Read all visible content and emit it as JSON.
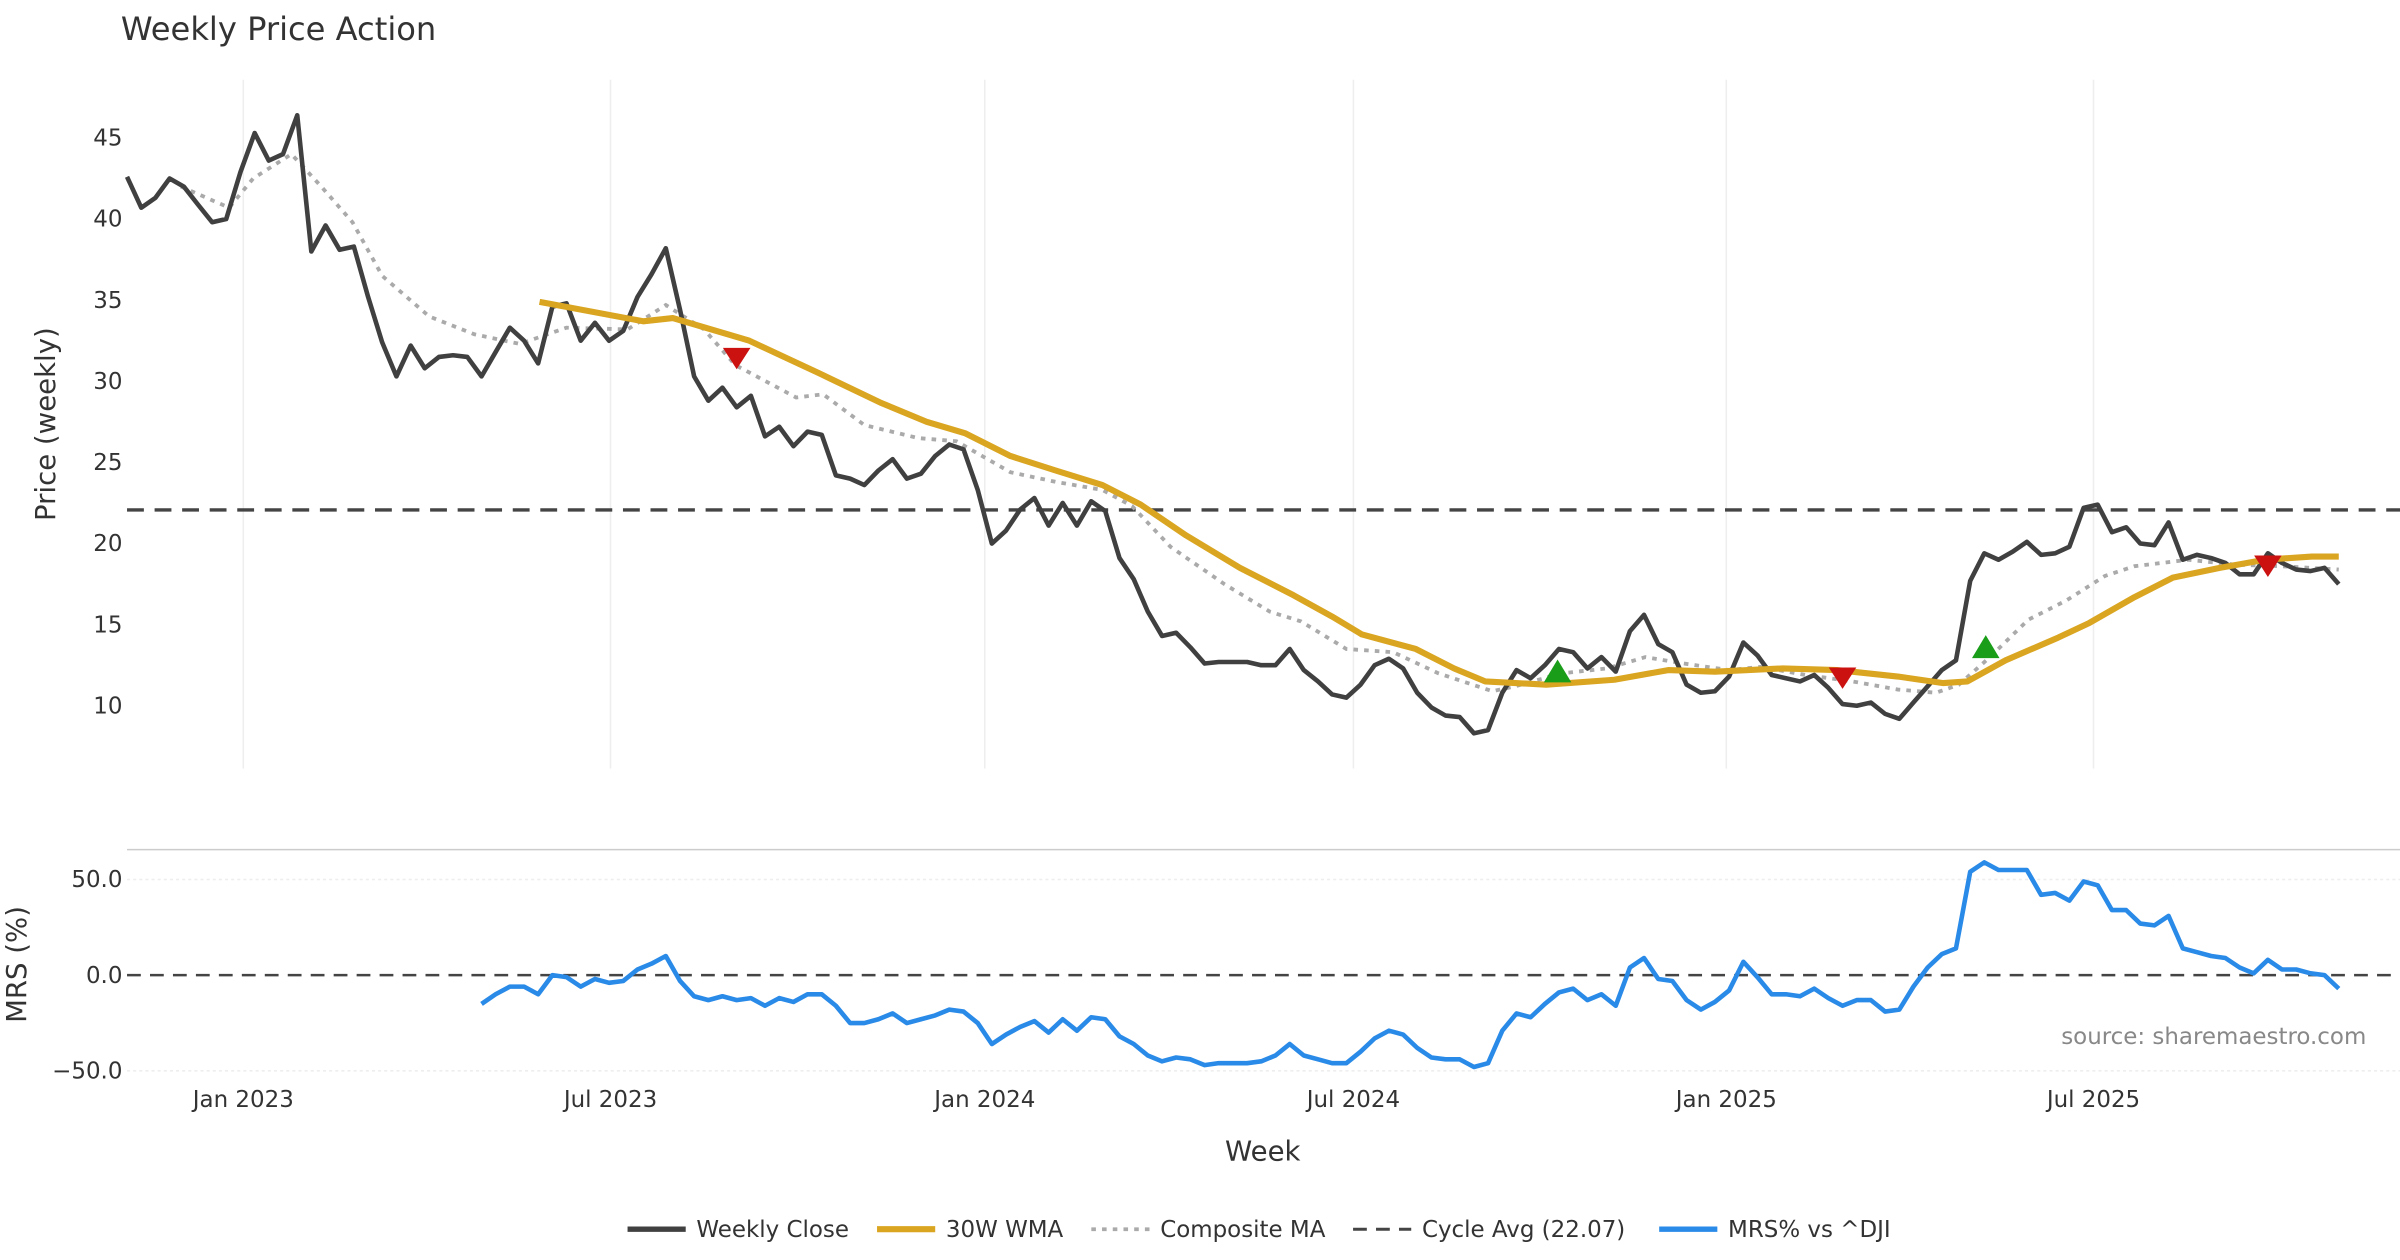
{
  "chart_data": [
    {
      "type": "line",
      "title": "Weekly Price Action",
      "xlabel": "Week",
      "ylabel": "Price (weekly)",
      "x_unit": "week index from first weekly close",
      "ylim": [
        5.5,
        48
      ],
      "yticks": [
        10,
        15,
        20,
        25,
        30,
        35,
        40,
        45
      ],
      "xticks": [
        {
          "label": "Jan 2023",
          "week": 8.2
        },
        {
          "label": "Jul 2023",
          "week": 34.1
        },
        {
          "label": "Jan 2024",
          "week": 60.5
        },
        {
          "label": "Jul 2024",
          "week": 86.5
        },
        {
          "label": "Jan 2025",
          "week": 112.8
        },
        {
          "label": "Jul 2025",
          "week": 138.7
        }
      ],
      "grid": "vertical",
      "series": [
        {
          "name": "Weekly Close",
          "color": "#404040",
          "start_week": 0,
          "values": [
            42.6,
            40.7,
            41.3,
            42.5,
            42.0,
            40.9,
            39.8,
            40.0,
            42.9,
            45.3,
            43.6,
            44.0,
            46.4,
            38.0,
            39.6,
            38.1,
            38.3,
            35.2,
            32.4,
            30.3,
            32.2,
            30.8,
            31.5,
            31.6,
            31.5,
            30.3,
            31.8,
            33.3,
            32.5,
            31.1,
            34.6,
            34.8,
            32.5,
            33.6,
            32.5,
            33.1,
            35.2,
            36.6,
            38.2,
            34.4,
            30.3,
            28.8,
            29.6,
            28.4,
            29.1,
            26.6,
            27.2,
            26.0,
            26.9,
            26.7,
            24.2,
            24.0,
            23.6,
            24.5,
            25.2,
            24.0,
            24.3,
            25.4,
            26.1,
            25.8,
            23.3,
            20.0,
            20.8,
            22.1,
            22.8,
            21.1,
            22.5,
            21.1,
            22.6,
            22.0,
            19.1,
            17.8,
            15.8,
            14.3,
            14.5,
            13.6,
            12.6,
            12.7,
            12.7,
            12.7,
            12.5,
            12.5,
            13.5,
            12.2,
            11.5,
            10.7,
            10.5,
            11.3,
            12.5,
            12.9,
            12.3,
            10.8,
            9.9,
            9.4,
            9.3,
            8.3,
            8.5,
            10.8,
            12.2,
            11.7,
            12.5,
            13.5,
            13.3,
            12.3,
            13.0,
            12.1,
            14.6,
            15.6,
            13.8,
            13.3,
            11.3,
            10.8,
            10.9,
            11.8,
            13.9,
            13.1,
            11.9,
            11.7,
            11.5,
            11.9,
            11.1,
            10.1,
            10.0,
            10.2,
            9.5,
            9.2,
            10.2,
            11.2,
            12.2,
            12.8,
            17.7,
            19.4,
            19.0,
            19.5,
            20.1,
            19.3,
            19.4,
            19.8,
            22.2,
            22.4,
            20.7,
            21.0,
            20.0,
            19.9,
            21.3,
            19.0,
            19.3,
            19.1,
            18.8,
            18.1,
            18.1,
            19.4,
            18.8,
            18.4,
            18.3,
            18.5,
            17.5
          ]
        },
        {
          "name": "30W WMA",
          "color": "#DAA520",
          "points": [
            [
              29.1,
              34.9
            ],
            [
              36.4,
              33.7
            ],
            [
              38.5,
              33.9
            ],
            [
              43.9,
              32.5
            ],
            [
              48.8,
              30.5
            ],
            [
              53.1,
              28.7
            ],
            [
              56.4,
              27.5
            ],
            [
              59.1,
              26.8
            ],
            [
              62.3,
              25.4
            ],
            [
              65.5,
              24.5
            ],
            [
              68.8,
              23.6
            ],
            [
              71.5,
              22.4
            ],
            [
              74.7,
              20.5
            ],
            [
              78.5,
              18.5
            ],
            [
              82.3,
              16.8
            ],
            [
              85.0,
              15.5
            ],
            [
              87.1,
              14.4
            ],
            [
              90.9,
              13.5
            ],
            [
              93.6,
              12.3
            ],
            [
              95.8,
              11.5
            ],
            [
              100.1,
              11.3
            ],
            [
              104.9,
              11.6
            ],
            [
              108.7,
              12.2
            ],
            [
              112.0,
              12.1
            ],
            [
              116.8,
              12.3
            ],
            [
              120.6,
              12.2
            ],
            [
              124.9,
              11.8
            ],
            [
              128.1,
              11.4
            ],
            [
              129.8,
              11.5
            ],
            [
              132.5,
              12.8
            ],
            [
              136.2,
              14.2
            ],
            [
              138.4,
              15.1
            ],
            [
              141.6,
              16.7
            ],
            [
              144.3,
              17.9
            ],
            [
              147.6,
              18.5
            ],
            [
              150.8,
              19.0
            ],
            [
              154.1,
              19.2
            ],
            [
              156,
              19.2
            ]
          ]
        },
        {
          "name": "Composite MA",
          "color": "#aaaaaa",
          "points": [
            [
              3.8,
              42.0
            ],
            [
              7.2,
              40.7
            ],
            [
              8.9,
              42.5
            ],
            [
              11.6,
              44.0
            ],
            [
              13.7,
              42.0
            ],
            [
              15.9,
              39.8
            ],
            [
              18.0,
              36.5
            ],
            [
              21.3,
              34.0
            ],
            [
              24.5,
              32.9
            ],
            [
              27.7,
              32.3
            ],
            [
              31.0,
              33.3
            ],
            [
              35.3,
              33.2
            ],
            [
              38.0,
              34.7
            ],
            [
              40.7,
              33.2
            ],
            [
              42.9,
              31.0
            ],
            [
              47.2,
              29.0
            ],
            [
              49.1,
              29.2
            ],
            [
              52.0,
              27.3
            ],
            [
              55.8,
              26.5
            ],
            [
              58.5,
              26.3
            ],
            [
              62.3,
              24.4
            ],
            [
              65.5,
              23.8
            ],
            [
              68.8,
              23.3
            ],
            [
              70.9,
              22.3
            ],
            [
              73.6,
              19.8
            ],
            [
              77.4,
              17.5
            ],
            [
              80.6,
              15.8
            ],
            [
              82.8,
              15.2
            ],
            [
              86.0,
              13.5
            ],
            [
              89.3,
              13.3
            ],
            [
              92.5,
              12.0
            ],
            [
              96.3,
              10.9
            ],
            [
              97.9,
              11.2
            ],
            [
              101.2,
              12.0
            ],
            [
              104.4,
              12.3
            ],
            [
              107.1,
              13.0
            ],
            [
              109.8,
              12.6
            ],
            [
              113.0,
              12.2
            ],
            [
              115.2,
              12.4
            ],
            [
              118.4,
              11.9
            ],
            [
              121.7,
              11.5
            ],
            [
              124.9,
              11.0
            ],
            [
              127.6,
              10.8
            ],
            [
              129.2,
              11.3
            ],
            [
              131.4,
              13.0
            ],
            [
              134.1,
              15.3
            ],
            [
              136.8,
              16.5
            ],
            [
              139.5,
              18.0
            ],
            [
              141.6,
              18.6
            ],
            [
              145.4,
              19.0
            ],
            [
              148.7,
              18.7
            ],
            [
              151.9,
              18.6
            ],
            [
              156,
              18.4
            ]
          ]
        },
        {
          "name": "Cycle Avg (22.07)",
          "color": "#444444",
          "value": 22.07
        }
      ],
      "signals": [
        {
          "type": "sell",
          "week": 43.0,
          "value": 31.4,
          "color": "#cc1111"
        },
        {
          "type": "buy",
          "week": 100.9,
          "value": 12.1,
          "color": "#1a9e1a"
        },
        {
          "type": "sell",
          "week": 121.0,
          "value": 11.7,
          "color": "#cc1111"
        },
        {
          "type": "buy",
          "week": 131.1,
          "value": 13.6,
          "color": "#1a9e1a"
        },
        {
          "type": "sell",
          "week": 151.0,
          "value": 18.6,
          "color": "#cc1111"
        }
      ]
    },
    {
      "type": "line",
      "ylabel": "MRS (%)",
      "ylim": [
        -50,
        65
      ],
      "yticks": [
        {
          "v": 50,
          "label": "50.0"
        },
        {
          "v": 0,
          "label": "0.0"
        },
        {
          "v": -50,
          "label": "−50.0"
        }
      ],
      "series": [
        {
          "name": "MRS% vs ^DJI",
          "color": "#2a8ae8",
          "start_week": 25,
          "values": [
            -15,
            -10,
            -6,
            -6,
            -10,
            0,
            -1,
            -6,
            -2,
            -4,
            -3,
            3,
            6,
            10,
            -3,
            -11,
            -13,
            -11,
            -13,
            -12,
            -16,
            -12,
            -14,
            -10,
            -10,
            -16,
            -25,
            -25,
            -23,
            -20,
            -25,
            -23,
            -21,
            -18,
            -19,
            -25,
            -36,
            -31,
            -27,
            -24,
            -30,
            -23,
            -29,
            -22,
            -23,
            -32,
            -36,
            -42,
            -45,
            -43,
            -44,
            -47,
            -46,
            -46,
            -46,
            -45,
            -42,
            -36,
            -42,
            -44,
            -46,
            -46,
            -40,
            -33,
            -29,
            -31,
            -38,
            -43,
            -44,
            -44,
            -48,
            -46,
            -29,
            -20,
            -22,
            -15,
            -9,
            -7,
            -13,
            -10,
            -16,
            4,
            9,
            -2,
            -3,
            -13,
            -18,
            -14,
            -8,
            7,
            -1,
            -10,
            -10,
            -11,
            -7,
            -12,
            -16,
            -13,
            -13,
            -19,
            -18,
            -6,
            4,
            11,
            14,
            54,
            59,
            55,
            55,
            55,
            42,
            43,
            39,
            49,
            47,
            34,
            34,
            27,
            26,
            31,
            14,
            12,
            10,
            9,
            4,
            1,
            8,
            3,
            3,
            1,
            0,
            -7
          ]
        },
        {
          "name": "zero line",
          "value": 0
        }
      ],
      "annotation": "source: sharemaestro.com"
    }
  ],
  "legend": {
    "placement": "bottom-center",
    "items": [
      "Weekly Close",
      "30W WMA",
      "Composite MA",
      "Cycle Avg (22.07)",
      "MRS% vs ^DJI"
    ]
  }
}
